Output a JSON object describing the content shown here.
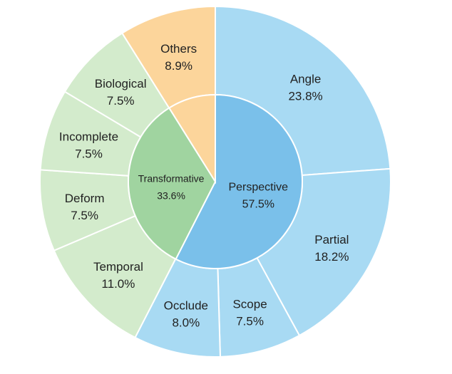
{
  "chart_data": {
    "type": "pie",
    "subtype": "sunburst",
    "inner": [
      {
        "label": "Perspective",
        "value": 57.5,
        "pct": "57.5%",
        "color": "#7ac0ea"
      },
      {
        "label": "Transformative",
        "value": 33.6,
        "pct": "33.6%",
        "color": "#a0d4a0"
      },
      {
        "label": "Others",
        "value": 8.9,
        "pct": "8.9%",
        "color": "#fcd59b"
      }
    ],
    "outer": [
      {
        "label": "Angle",
        "value": 23.8,
        "pct": "23.8%",
        "parent": "Perspective",
        "color": "#a8daf3"
      },
      {
        "label": "Partial",
        "value": 18.2,
        "pct": "18.2%",
        "parent": "Perspective",
        "color": "#a8daf3"
      },
      {
        "label": "Scope",
        "value": 7.5,
        "pct": "7.5%",
        "parent": "Perspective",
        "color": "#a8daf3"
      },
      {
        "label": "Occlude",
        "value": 8.0,
        "pct": "8.0%",
        "parent": "Perspective",
        "color": "#a8daf3"
      },
      {
        "label": "Temporal",
        "value": 11.0,
        "pct": "11.0%",
        "parent": "Transformative",
        "color": "#d3ebcc"
      },
      {
        "label": "Deform",
        "value": 7.5,
        "pct": "7.5%",
        "parent": "Transformative",
        "color": "#d3ebcc"
      },
      {
        "label": "Incomplete",
        "value": 7.5,
        "pct": "7.5%",
        "parent": "Transformative",
        "color": "#d3ebcc"
      },
      {
        "label": "Biological",
        "value": 7.5,
        "pct": "7.5%",
        "parent": "Transformative",
        "color": "#d3ebcc"
      },
      {
        "label": "Others",
        "value": 8.9,
        "pct": "8.9%",
        "parent": "Others",
        "color": "#fcd59b"
      }
    ]
  }
}
